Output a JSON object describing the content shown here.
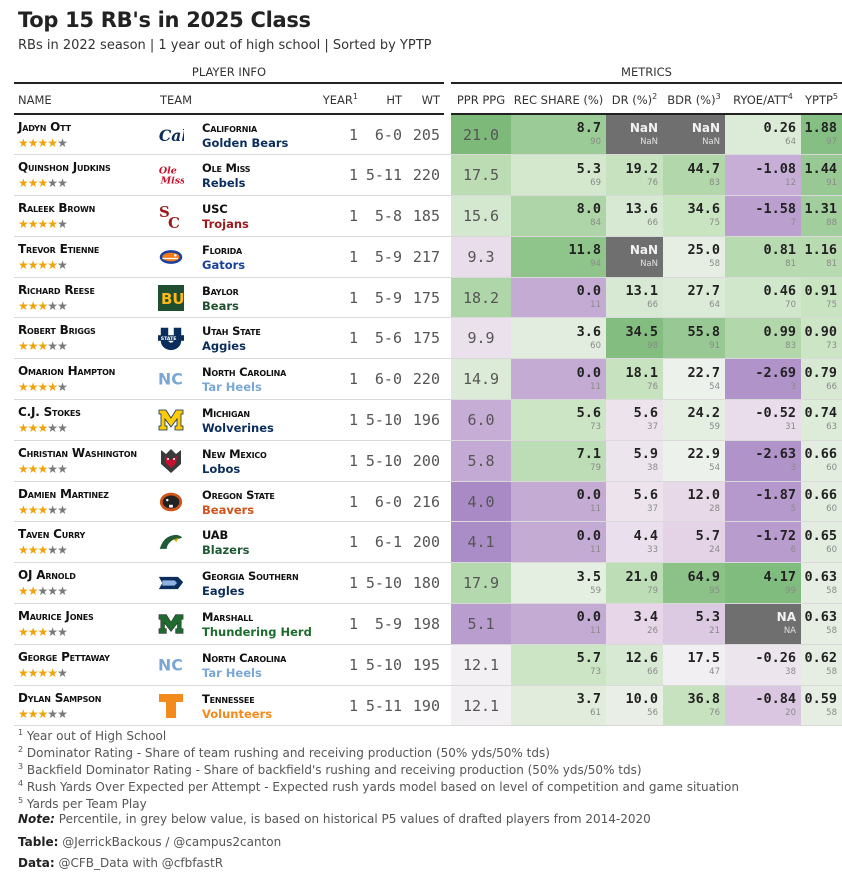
{
  "title": "Top 15 RB's in 2025 Class",
  "subtitle": "RBs in 2022 season | 1 year out of high school | Sorted by YPTP",
  "spanners": {
    "player_info": "PLAYER INFO",
    "metrics": "METRICS"
  },
  "columns": {
    "name": "NAME",
    "team": "TEAM",
    "year": "YEAR",
    "year_sup": "1",
    "ht": "HT",
    "wt": "WT",
    "ppr": "PPR PPG",
    "rec": "REC SHARE (%)",
    "dr": "DR (%)",
    "dr_sup": "2",
    "bdr": "BDR (%)",
    "bdr_sup": "3",
    "ryoe": "RYOE/ATT",
    "ryoe_sup": "4",
    "yptp": "YPTP",
    "yptp_sup": "5"
  },
  "colors": {
    "bar_dark": "#7dba7a",
    "green_light": "#c9e4c1",
    "neutral": "#f3f3f3",
    "purple_light": "#e6d5e8",
    "purple_dark": "#a98ac5",
    "nan_gray": "#6f6f6f",
    "star_on": "#f0a30a",
    "star_off": "#7a7a7a"
  },
  "chart_data": {
    "type": "table",
    "rows": [
      {
        "name": "Jadyn Ott",
        "stars": 4,
        "school": "California",
        "mascot": "Golden Bears",
        "mascot_color": "#0b2d5b",
        "logo": "cal-logo",
        "year": 1,
        "ht": "6-0",
        "wt": 205,
        "ppr": "21.0",
        "rec": "8.7",
        "rec_p": "90",
        "dr": "NaN",
        "dr_p": "NaN",
        "bdr": "NaN",
        "bdr_p": "NaN",
        "ryoe": "0.26",
        "ryoe_p": "64",
        "yptp": "1.88",
        "yptp_p": "97"
      },
      {
        "name": "Quinshon Judkins",
        "stars": 3,
        "school": "Ole Miss",
        "mascot": "Rebels",
        "mascot_color": "#0b2d5b",
        "logo": "ole-miss-logo",
        "year": 1,
        "ht": "5-11",
        "wt": 220,
        "ppr": "17.5",
        "rec": "5.3",
        "rec_p": "69",
        "dr": "19.2",
        "dr_p": "76",
        "bdr": "44.7",
        "bdr_p": "83",
        "ryoe": "-1.08",
        "ryoe_p": "12",
        "yptp": "1.44",
        "yptp_p": "91"
      },
      {
        "name": "Raleek Brown",
        "stars": 4,
        "school": "USC",
        "mascot": "Trojans",
        "mascot_color": "#9d1b1e",
        "logo": "usc-logo",
        "year": 1,
        "ht": "5-8",
        "wt": 185,
        "ppr": "15.6",
        "rec": "8.0",
        "rec_p": "84",
        "dr": "13.6",
        "dr_p": "66",
        "bdr": "34.6",
        "bdr_p": "75",
        "ryoe": "-1.58",
        "ryoe_p": "7",
        "yptp": "1.31",
        "yptp_p": "88"
      },
      {
        "name": "Trevor Etienne",
        "stars": 4,
        "school": "Florida",
        "mascot": "Gators",
        "mascot_color": "#1a3f9c",
        "logo": "florida-gator-logo",
        "year": 1,
        "ht": "5-9",
        "wt": 217,
        "ppr": "9.3",
        "rec": "11.8",
        "rec_p": "94",
        "dr": "NaN",
        "dr_p": "NaN",
        "bdr": "25.0",
        "bdr_p": "58",
        "ryoe": "0.81",
        "ryoe_p": "81",
        "yptp": "1.16",
        "yptp_p": "81"
      },
      {
        "name": "Richard Reese",
        "stars": 3,
        "school": "Baylor",
        "mascot": "Bears",
        "mascot_color": "#1f4f2f",
        "logo": "baylor-logo",
        "year": 1,
        "ht": "5-9",
        "wt": 175,
        "ppr": "18.2",
        "rec": "0.0",
        "rec_p": "11",
        "dr": "13.1",
        "dr_p": "66",
        "bdr": "27.7",
        "bdr_p": "64",
        "ryoe": "0.46",
        "ryoe_p": "70",
        "yptp": "0.91",
        "yptp_p": "75"
      },
      {
        "name": "Robert Briggs",
        "stars": 3,
        "school": "Utah State",
        "mascot": "Aggies",
        "mascot_color": "#0b2d5b",
        "logo": "utah-state-logo",
        "year": 1,
        "ht": "5-6",
        "wt": 175,
        "ppr": "9.9",
        "rec": "3.6",
        "rec_p": "60",
        "dr": "34.5",
        "dr_p": "98",
        "bdr": "55.8",
        "bdr_p": "91",
        "ryoe": "0.99",
        "ryoe_p": "83",
        "yptp": "0.90",
        "yptp_p": "73"
      },
      {
        "name": "Omarion Hampton",
        "stars": 4,
        "school": "North Carolina",
        "mascot": "Tar Heels",
        "mascot_color": "#7ba7d4",
        "logo": "unc-logo",
        "year": 1,
        "ht": "6-0",
        "wt": 220,
        "ppr": "14.9",
        "rec": "0.0",
        "rec_p": "11",
        "dr": "18.1",
        "dr_p": "76",
        "bdr": "22.7",
        "bdr_p": "54",
        "ryoe": "-2.69",
        "ryoe_p": "3",
        "yptp": "0.79",
        "yptp_p": "66"
      },
      {
        "name": "C.J. Stokes",
        "stars": 3,
        "school": "Michigan",
        "mascot": "Wolverines",
        "mascot_color": "#0b2d5b",
        "logo": "michigan-logo",
        "year": 1,
        "ht": "5-10",
        "wt": 196,
        "ppr": "6.0",
        "rec": "5.6",
        "rec_p": "73",
        "dr": "5.6",
        "dr_p": "37",
        "bdr": "24.2",
        "bdr_p": "59",
        "ryoe": "-0.52",
        "ryoe_p": "31",
        "yptp": "0.74",
        "yptp_p": "63"
      },
      {
        "name": "Christian Washington",
        "stars": 3,
        "school": "New Mexico",
        "mascot": "Lobos",
        "mascot_color": "#0b2d5b",
        "logo": "new-mexico-logo",
        "year": 1,
        "ht": "5-10",
        "wt": 200,
        "ppr": "5.8",
        "rec": "7.1",
        "rec_p": "79",
        "dr": "5.9",
        "dr_p": "38",
        "bdr": "22.9",
        "bdr_p": "54",
        "ryoe": "-2.63",
        "ryoe_p": "3",
        "yptp": "0.66",
        "yptp_p": "60"
      },
      {
        "name": "Damien Martinez",
        "stars": 3,
        "school": "Oregon State",
        "mascot": "Beavers",
        "mascot_color": "#d0531b",
        "logo": "oregon-state-logo",
        "year": 1,
        "ht": "6-0",
        "wt": 216,
        "ppr": "4.0",
        "rec": "0.0",
        "rec_p": "11",
        "dr": "5.6",
        "dr_p": "37",
        "bdr": "12.0",
        "bdr_p": "28",
        "ryoe": "-1.87",
        "ryoe_p": "5",
        "yptp": "0.66",
        "yptp_p": "60"
      },
      {
        "name": "Taven Curry",
        "stars": 3,
        "school": "UAB",
        "mascot": "Blazers",
        "mascot_color": "#1f5a35",
        "logo": "uab-logo",
        "year": 1,
        "ht": "6-1",
        "wt": 200,
        "ppr": "4.1",
        "rec": "0.0",
        "rec_p": "11",
        "dr": "4.4",
        "dr_p": "33",
        "bdr": "5.7",
        "bdr_p": "24",
        "ryoe": "-1.72",
        "ryoe_p": "6",
        "yptp": "0.65",
        "yptp_p": "60"
      },
      {
        "name": "OJ Arnold",
        "stars": 2,
        "school": "Georgia Southern",
        "mascot": "Eagles",
        "mascot_color": "#0b2d5b",
        "logo": "georgia-southern-logo",
        "year": 1,
        "ht": "5-10",
        "wt": 180,
        "ppr": "17.9",
        "rec": "3.5",
        "rec_p": "59",
        "dr": "21.0",
        "dr_p": "79",
        "bdr": "64.9",
        "bdr_p": "95",
        "ryoe": "4.17",
        "ryoe_p": "99",
        "yptp": "0.63",
        "yptp_p": "58"
      },
      {
        "name": "Maurice Jones",
        "stars": 3,
        "school": "Marshall",
        "mascot": "Thundering Herd",
        "mascot_color": "#1f6b2f",
        "logo": "marshall-logo",
        "year": 1,
        "ht": "5-9",
        "wt": 198,
        "ppr": "5.1",
        "rec": "0.0",
        "rec_p": "11",
        "dr": "3.4",
        "dr_p": "26",
        "bdr": "5.3",
        "bdr_p": "21",
        "ryoe": "NA",
        "ryoe_p": "NA",
        "yptp": "0.63",
        "yptp_p": "58"
      },
      {
        "name": "George Pettaway",
        "stars": 4,
        "school": "North Carolina",
        "mascot": "Tar Heels",
        "mascot_color": "#7ba7d4",
        "logo": "unc-logo",
        "year": 1,
        "ht": "5-10",
        "wt": 195,
        "ppr": "12.1",
        "rec": "5.7",
        "rec_p": "73",
        "dr": "12.6",
        "dr_p": "66",
        "bdr": "17.5",
        "bdr_p": "47",
        "ryoe": "-0.26",
        "ryoe_p": "38",
        "yptp": "0.62",
        "yptp_p": "58"
      },
      {
        "name": "Dylan Sampson",
        "stars": 3,
        "school": "Tennessee",
        "mascot": "Volunteers",
        "mascot_color": "#f28a1c",
        "logo": "tennessee-logo",
        "year": 1,
        "ht": "5-11",
        "wt": 190,
        "ppr": "12.1",
        "rec": "3.7",
        "rec_p": "61",
        "dr": "10.0",
        "dr_p": "56",
        "bdr": "36.8",
        "bdr_p": "76",
        "ryoe": "-0.84",
        "ryoe_p": "20",
        "yptp": "0.59",
        "yptp_p": "58"
      }
    ]
  },
  "footnotes": [
    {
      "num": "1",
      "text": "Year out of High School"
    },
    {
      "num": "2",
      "text": "Dominator Rating - Share of team rushing and receiving production (50% yds/50% tds)"
    },
    {
      "num": "3",
      "text": "Backfield Dominator Rating - Share of backfield's rushing and receiving production (50% yds/50% tds)"
    },
    {
      "num": "4",
      "text": "Rush Yards Over Expected per Attempt - Expected rush yards model based on level of competition and game situation"
    },
    {
      "num": "5",
      "text": "Yards per Team Play"
    }
  ],
  "note_label": "Note:",
  "note_text": " Percentile, in grey below value, is based on historical P5 values of drafted players from 2014-2020",
  "table_label": "Table:",
  "table_text": " @JerrickBackous / @campus2canton",
  "data_label": "Data:",
  "data_text": " @CFB_Data with @cfbfastR"
}
